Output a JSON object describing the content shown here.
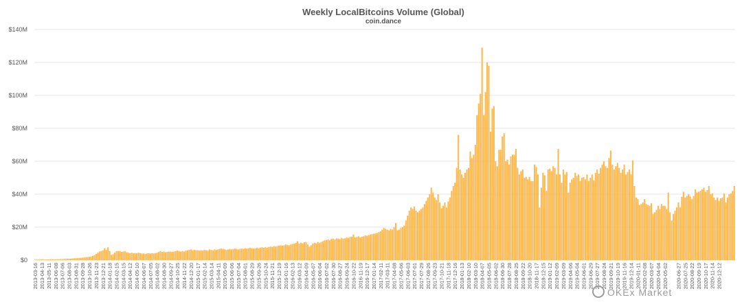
{
  "chart_data": {
    "type": "bar",
    "title": "Weekly LocalBitcoins Volume (Global)",
    "subtitle": "coin.dance",
    "ylabel": "",
    "xlabel": "",
    "ylim": [
      0,
      140
    ],
    "y_unit": "$M",
    "yticks": [
      "$0",
      "$20M",
      "$40M",
      "$60M",
      "$80M",
      "$100M",
      "$120M",
      "$140M"
    ],
    "color": "#FFB84D",
    "grid": true,
    "start_date": "2013-03-16",
    "x_tick_labels": [
      "2013-03-16",
      "2013-04-13",
      "2013-05-11",
      "2013-06-08",
      "2013-07-06",
      "2013-08-03",
      "2013-08-31",
      "2013-09-28",
      "2013-10-26",
      "2013-11-23",
      "2013-12-21",
      "2014-01-18",
      "2014-02-15",
      "2014-03-15",
      "2014-04-12",
      "2014-05-10",
      "2014-06-07",
      "2014-07-05",
      "2014-08-02",
      "2014-08-30",
      "2014-09-27",
      "2014-10-25",
      "2014-11-22",
      "2014-12-20",
      "2015-01-17",
      "2015-02-14",
      "2015-03-14",
      "2015-04-11",
      "2015-05-09",
      "2015-06-06",
      "2015-07-04",
      "2015-08-01",
      "2015-08-29",
      "2015-09-26",
      "2015-10-24",
      "2015-11-21",
      "2015-12-19",
      "2016-01-16",
      "2016-02-13",
      "2016-03-12",
      "2016-04-09",
      "2016-05-07",
      "2016-06-04",
      "2016-07-02",
      "2016-07-30",
      "2016-08-27",
      "2016-09-24",
      "2016-10-22",
      "2016-11-19",
      "2016-12-17",
      "2017-01-14",
      "2017-02-11",
      "2017-03-11",
      "2017-04-08",
      "2017-05-06",
      "2017-06-03",
      "2017-07-01",
      "2017-07-29",
      "2017-08-26",
      "2017-09-23",
      "2017-10-21",
      "2017-11-18",
      "2017-12-16",
      "2018-01-13",
      "2018-02-10",
      "2018-03-10",
      "2018-04-07",
      "2018-05-05",
      "2018-06-02",
      "2018-06-30",
      "2018-07-28",
      "2018-08-25",
      "2018-09-22",
      "2018-10-20",
      "2018-11-17",
      "2018-12-15",
      "2019-01-12",
      "2019-02-09",
      "2019-03-09",
      "2019-04-06",
      "2019-05-04",
      "2019-06-01",
      "2019-06-29",
      "2019-07-27",
      "2019-08-24",
      "2019-09-21",
      "2019-10-19",
      "2019-11-16",
      "2019-12-14",
      "2020-01-11",
      "2020-02-08",
      "2020-03-07",
      "2020-04-04",
      "2020-05-02",
      "2020-06-27",
      "2020-07-25",
      "2020-08-22",
      "2020-09-19",
      "2020-10-17",
      "2020-11-14",
      "2020-12-12"
    ],
    "values": [
      0.3,
      0.3,
      0.3,
      0.4,
      0.4,
      0.3,
      0.3,
      0.4,
      0.4,
      0.5,
      0.5,
      0.5,
      0.4,
      0.5,
      0.5,
      0.6,
      0.6,
      0.7,
      0.8,
      0.8,
      0.8,
      0.9,
      1.0,
      1.1,
      1.2,
      1.2,
      1.3,
      1.4,
      1.5,
      1.6,
      1.8,
      1.9,
      2.0,
      2.2,
      2.5,
      3.0,
      3.8,
      4.5,
      5.2,
      5.5,
      6.0,
      7.2,
      6.2,
      7.8,
      5.5,
      3.2,
      3.5,
      4.5,
      5.5,
      5.5,
      5.5,
      5.0,
      5.2,
      5.5,
      4.8,
      4.5,
      4.2,
      4.5,
      4.2,
      4.3,
      4.2,
      4.5,
      4.2,
      4.0,
      4.0,
      3.8,
      4.0,
      4.2,
      4.0,
      4.2,
      4.0,
      4.2,
      4.5,
      5.0,
      5.5,
      5.0,
      5.2,
      4.8,
      5.0,
      5.2,
      5.2,
      5.0,
      5.2,
      5.5,
      5.8,
      5.5,
      5.2,
      5.5,
      5.2,
      5.8,
      6.0,
      6.2,
      6.5,
      6.0,
      6.2,
      6.0,
      6.0,
      5.8,
      6.0,
      5.8,
      6.2,
      6.0,
      5.8,
      6.5,
      6.2,
      6.0,
      6.5,
      6.2,
      6.5,
      6.8,
      7.0,
      6.8,
      6.5,
      6.2,
      6.5,
      6.8,
      6.5,
      6.8,
      7.0,
      6.8,
      6.5,
      6.8,
      7.0,
      6.8,
      7.2,
      7.0,
      7.2,
      7.5,
      7.2,
      7.0,
      7.2,
      7.5,
      7.2,
      7.5,
      7.8,
      7.5,
      7.8,
      7.5,
      8.0,
      8.2,
      8.0,
      8.5,
      8.2,
      8.5,
      8.8,
      9.0,
      8.8,
      9.0,
      9.5,
      9.2,
      9.0,
      9.5,
      9.8,
      10.0,
      10.5,
      11.5,
      10.0,
      10.5,
      10.2,
      10.8,
      11.0,
      9.5,
      8.0,
      9.0,
      10.0,
      10.5,
      10.2,
      11.0,
      10.5,
      11.0,
      11.5,
      12.0,
      12.2,
      12.5,
      12.0,
      12.8,
      13.0,
      12.5,
      13.2,
      13.0,
      12.8,
      13.5,
      13.0,
      13.2,
      13.8,
      13.5,
      14.0,
      14.2,
      15.5,
      13.8,
      14.0,
      14.5,
      13.8,
      14.2,
      14.5,
      15.0,
      14.8,
      15.2,
      15.5,
      15.8,
      16.0,
      16.2,
      16.5,
      17.0,
      17.5,
      18.5,
      19.5,
      19.0,
      18.5,
      18.0,
      19.0,
      18.5,
      20.0,
      22.5,
      18.0,
      18.5,
      19.5,
      20.0,
      21.0,
      24.0,
      27.0,
      30.0,
      32.0,
      31.0,
      32.5,
      30.0,
      29.0,
      30.0,
      31.0,
      32.0,
      34.0,
      36.0,
      38.0,
      40.0,
      44.0,
      41.0,
      38.0,
      36.5,
      40.0,
      35.0,
      31.5,
      33.0,
      35.0,
      32.0,
      35.5,
      38.0,
      42.0,
      45.0,
      47.0,
      56.0,
      76.0,
      55.0,
      52.0,
      50.0,
      53.0,
      55.0,
      56.0,
      66.0,
      62.0,
      64.0,
      70.0,
      88.0,
      95.0,
      101.0,
      129.0,
      88.0,
      102.0,
      120.0,
      118.0,
      78.0,
      92.0,
      93.5,
      60.0,
      57.0,
      67.0,
      67.0,
      75.0,
      77.0,
      60.0,
      61.0,
      58.0,
      63.0,
      64.0,
      64.0,
      67.5,
      56.0,
      52.0,
      54.0,
      55.0,
      50.0,
      50.5,
      49.0,
      50.5,
      48.0,
      48.0,
      58.0,
      56.5,
      52.0,
      32.0,
      44.0,
      53.0,
      51.5,
      42.0,
      55.0,
      55.5,
      54.0,
      57.0,
      56.0,
      52.0,
      67.5,
      52.0,
      47.0,
      55.0,
      52.0,
      53.5,
      41.0,
      47.0,
      49.0,
      50.0,
      53.0,
      51.0,
      52.0,
      48.0,
      50.0,
      50.5,
      49.0,
      52.0,
      48.0,
      50.0,
      52.0,
      48.5,
      53.0,
      55.0,
      52.5,
      56.0,
      58.0,
      60.0,
      57.0,
      56.0,
      62.0,
      66.5,
      58.0,
      55.0,
      57.0,
      59.0,
      56.0,
      53.0,
      55.0,
      58.0,
      52.0,
      53.5,
      55.0,
      52.0,
      60.5,
      45.0,
      38.0,
      37.0,
      33.5,
      34.0,
      35.0,
      37.0,
      34.0,
      33.5,
      33.0,
      34.5,
      28.0,
      29.0,
      30.5,
      33.0,
      31.0,
      34.0,
      33.0,
      33.0,
      31.0,
      41.0,
      29.0,
      24.0,
      28.0,
      30.0,
      32.0,
      35.0,
      32.0,
      38.5,
      41.5,
      38.0,
      39.0,
      40.0,
      38.5,
      37.0,
      39.0,
      43.0,
      41.0,
      41.5,
      42.0,
      43.0,
      44.0,
      41.5,
      42.5,
      45.0,
      40.0,
      40.5,
      38.0,
      36.5,
      38.0,
      36.0,
      37.5,
      38.0,
      40.5,
      35.0,
      38.0,
      40.0,
      40.5,
      42.0,
      45.0
    ]
  },
  "watermark": "OKEx Market"
}
